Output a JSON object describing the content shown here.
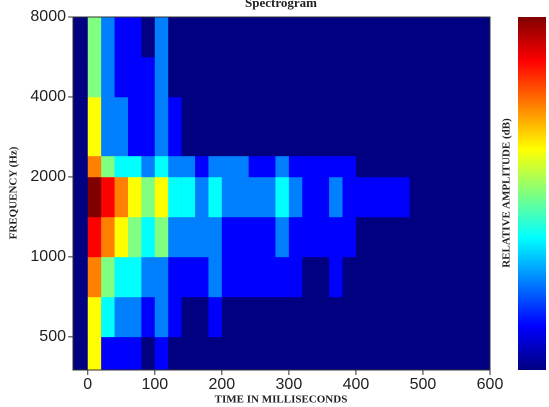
{
  "chart_data": {
    "type": "heatmap",
    "title": "Spectrogram",
    "x_label": "TIME IN MILLISECONDS",
    "y_label": "FREQUENCY (Hz)",
    "colorbar_label": "RELATIVE AMPLITUDE (dB)",
    "colormap": "jet",
    "yscale": "log",
    "xlim": [
      -22,
      600
    ],
    "xticks": [
      0,
      100,
      200,
      300,
      400,
      500,
      600
    ],
    "ylim": [
      375,
      8000
    ],
    "yticks": [
      500,
      1000,
      2000,
      4000,
      8000
    ],
    "x_edges": [
      -20,
      0,
      20,
      40,
      60,
      80,
      100,
      120,
      140,
      160,
      180,
      200,
      220,
      240,
      260,
      280,
      300,
      320,
      340,
      360,
      380,
      400,
      420,
      440,
      460,
      480,
      500,
      520,
      540,
      560,
      580,
      600
    ],
    "y_edges": [
      375,
      500,
      707,
      1000,
      1414,
      2000,
      2400,
      4000,
      5657,
      8000
    ],
    "z": [
      [
        1,
        6,
        2,
        2,
        2,
        1,
        2,
        1,
        1,
        1,
        1,
        1,
        1,
        1,
        1,
        1,
        1,
        1,
        1,
        1,
        1,
        1,
        1,
        1,
        1,
        1,
        1,
        1,
        1,
        1,
        1
      ],
      [
        1,
        6,
        4,
        3,
        3,
        2,
        3,
        2,
        1,
        1,
        2,
        1,
        1,
        1,
        1,
        1,
        1,
        1,
        1,
        1,
        1,
        1,
        1,
        1,
        1,
        1,
        1,
        1,
        1,
        1,
        1
      ],
      [
        1,
        7,
        5,
        4,
        4,
        3,
        3,
        2,
        2,
        2,
        3,
        2,
        2,
        2,
        2,
        2,
        2,
        1,
        1,
        2,
        1,
        1,
        1,
        1,
        1,
        1,
        1,
        1,
        1,
        1,
        1
      ],
      [
        1,
        8,
        7,
        6,
        5,
        4,
        5,
        3,
        3,
        3,
        3,
        2,
        2,
        2,
        2,
        3,
        2,
        2,
        2,
        2,
        2,
        1,
        1,
        1,
        1,
        1,
        1,
        1,
        1,
        1,
        1
      ],
      [
        1,
        9,
        8,
        7,
        6,
        5,
        6,
        4,
        4,
        3,
        4,
        3,
        3,
        3,
        3,
        4,
        3,
        2,
        2,
        3,
        2,
        2,
        2,
        2,
        2,
        1,
        1,
        1,
        1,
        1,
        1
      ],
      [
        1,
        7,
        5,
        4,
        4,
        3,
        4,
        3,
        3,
        2,
        3,
        3,
        3,
        2,
        2,
        3,
        2,
        2,
        2,
        2,
        2,
        1,
        1,
        1,
        1,
        1,
        1,
        1,
        1,
        1,
        1
      ],
      [
        1,
        6,
        3,
        3,
        2,
        2,
        3,
        2,
        1,
        1,
        1,
        1,
        1,
        1,
        1,
        1,
        1,
        1,
        1,
        1,
        1,
        1,
        1,
        1,
        1,
        1,
        1,
        1,
        1,
        1,
        1
      ],
      [
        1,
        5,
        3,
        2,
        2,
        2,
        3,
        1,
        1,
        1,
        1,
        1,
        1,
        1,
        1,
        1,
        1,
        1,
        1,
        1,
        1,
        1,
        1,
        1,
        1,
        1,
        1,
        1,
        1,
        1,
        1
      ],
      [
        1,
        5,
        3,
        2,
        2,
        1,
        3,
        1,
        1,
        1,
        1,
        1,
        1,
        1,
        1,
        1,
        1,
        1,
        1,
        1,
        1,
        1,
        1,
        1,
        1,
        1,
        1,
        1,
        1,
        1,
        1
      ]
    ]
  }
}
